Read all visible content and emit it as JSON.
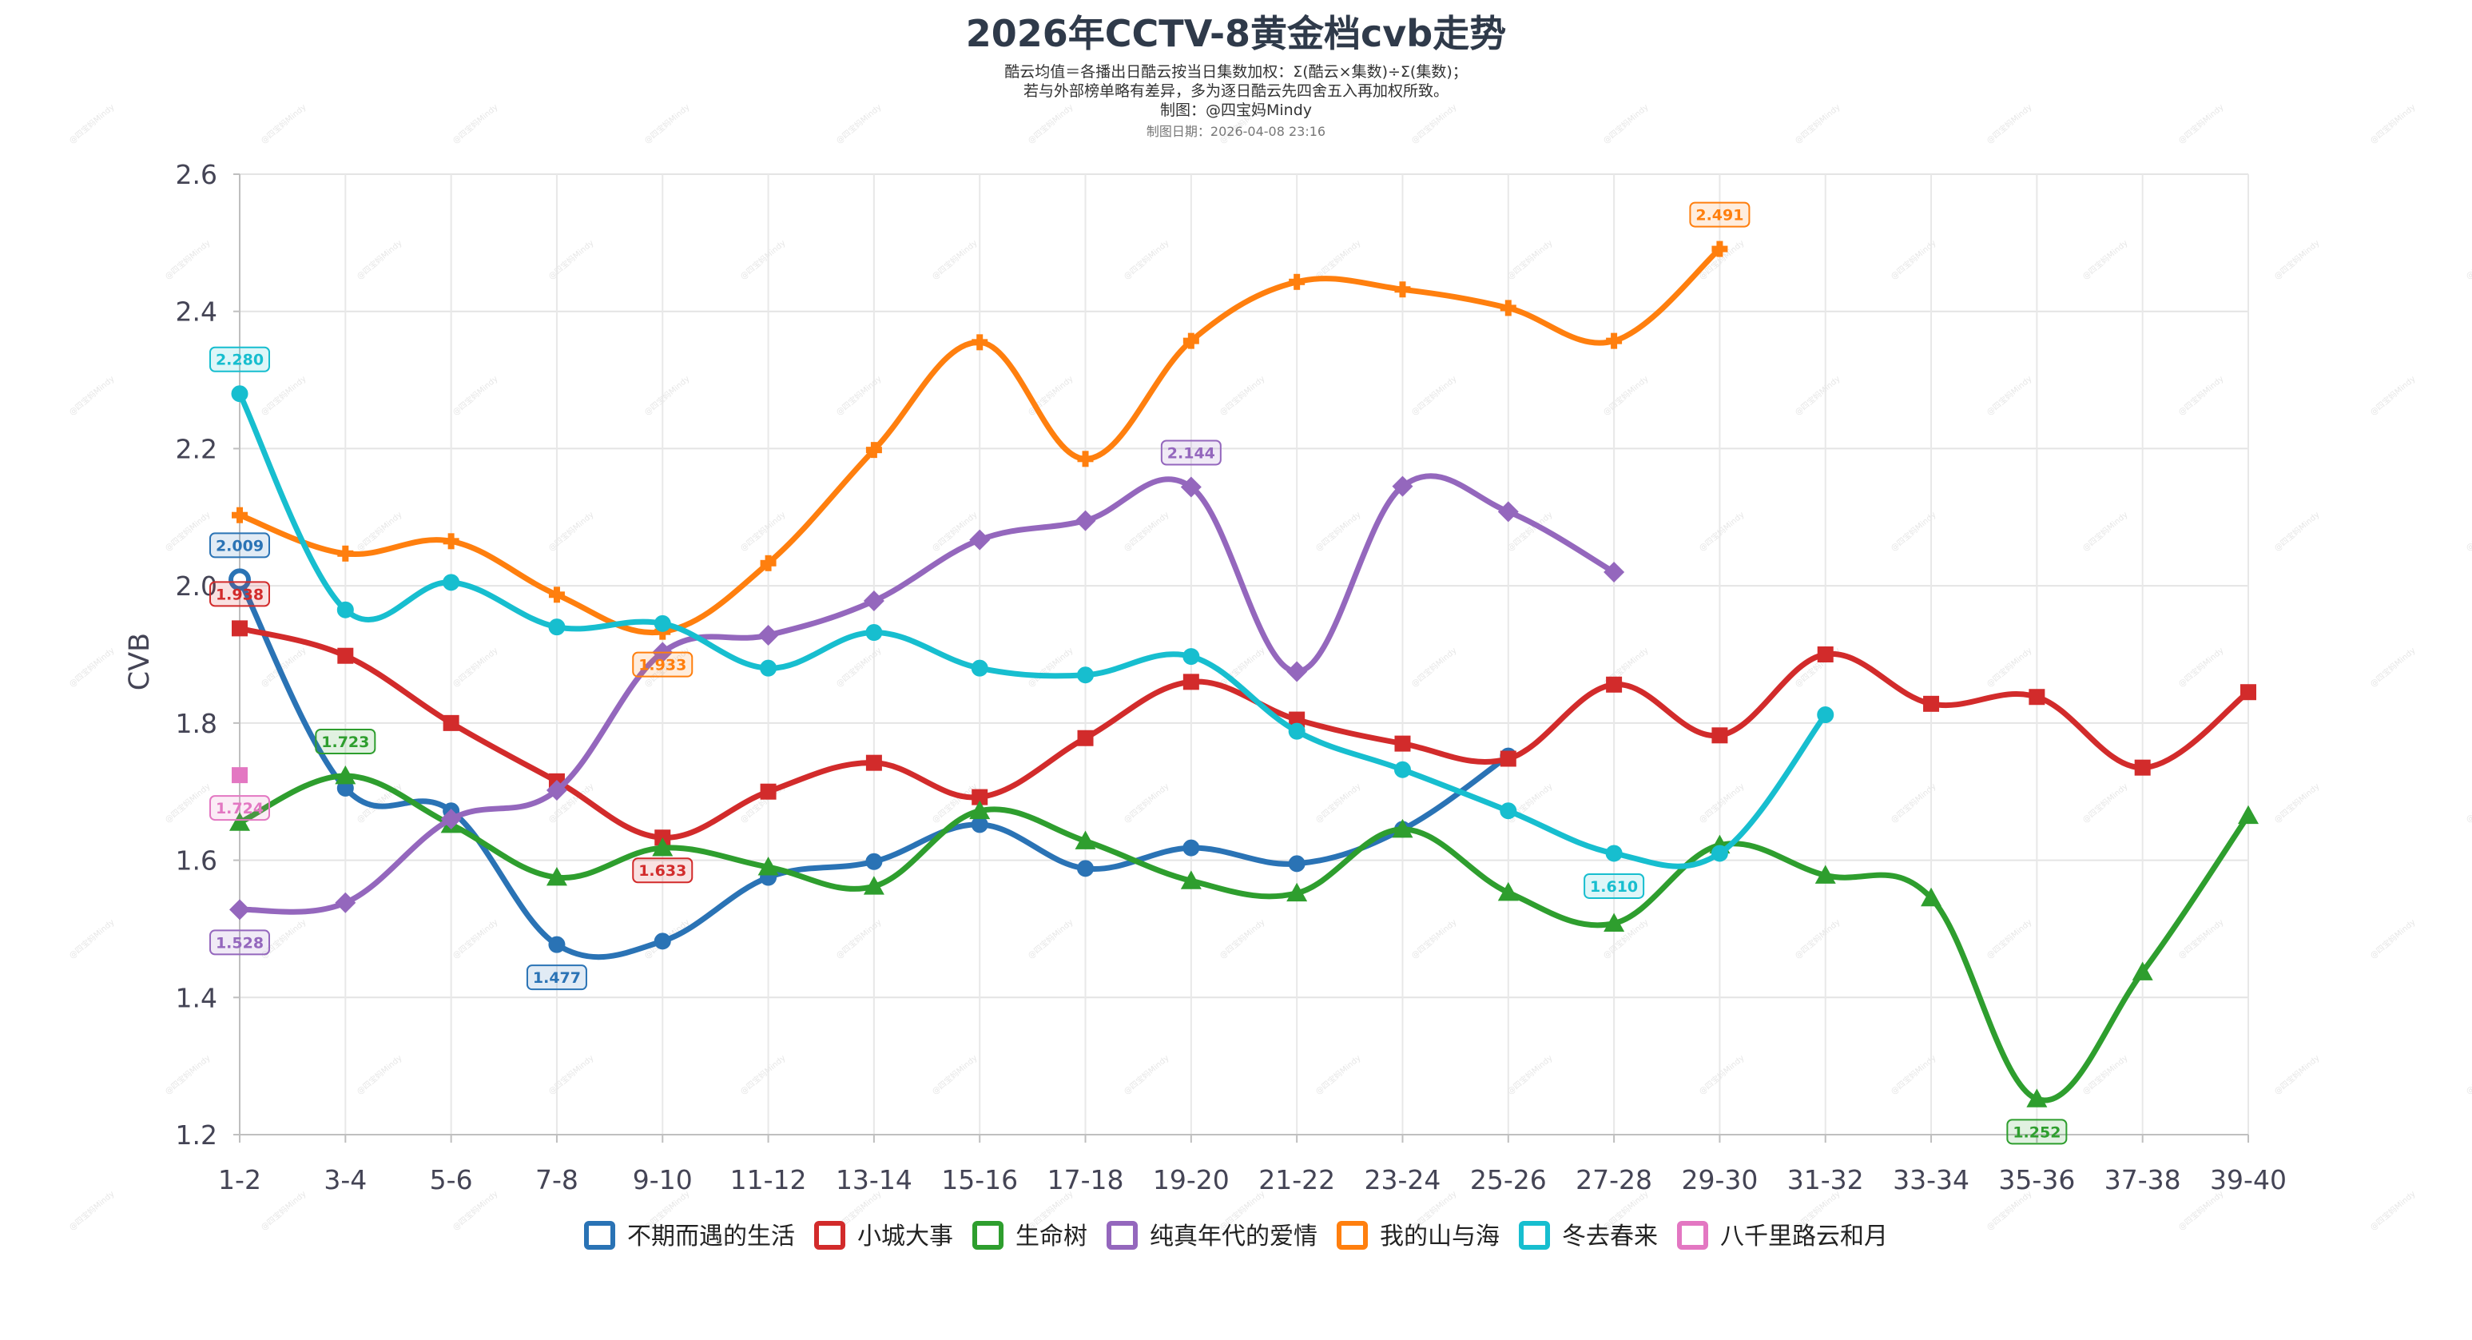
{
  "chart_data": {
    "type": "line",
    "title": "2026年CCTV-8黄金档cvb走势",
    "subtitle_lines": [
      "酷云均值＝各播出日酷云按当日集数加权：Σ(酷云×集数)÷Σ(集数)；",
      "若与外部榜单略有差异，多为逐日酷云先四舍五入再加权所致。",
      "制图：@四宝妈Mindy"
    ],
    "date_line": "制图日期：2026-04-08 23:16",
    "watermark": "@四宝妈Mindy",
    "xlabel": "",
    "ylabel": "CVB",
    "ylim": [
      1.2,
      2.6
    ],
    "yticks": [
      "1.2",
      "1.4",
      "1.6",
      "1.8",
      "2.0",
      "2.2",
      "2.4",
      "2.6"
    ],
    "grid": true,
    "legend_position": "bottom",
    "categories": [
      "1-2",
      "3-4",
      "5-6",
      "7-8",
      "9-10",
      "11-12",
      "13-14",
      "15-16",
      "17-18",
      "19-20",
      "21-22",
      "23-24",
      "25-26",
      "27-28",
      "29-30",
      "31-32",
      "33-34",
      "35-36",
      "37-38",
      "39-40"
    ],
    "series": [
      {
        "name": "不期而遇的生活",
        "color": "#2a73b5",
        "marker": "circle",
        "values": [
          2.009,
          1.705,
          1.672,
          1.477,
          1.482,
          1.575,
          1.598,
          1.652,
          1.588,
          1.618,
          1.595,
          1.645,
          1.752,
          null,
          null,
          null,
          null,
          null,
          null,
          null
        ],
        "labels": [
          {
            "index": 0,
            "text": "2.009",
            "pos": "above"
          },
          {
            "index": 3,
            "text": "1.477",
            "pos": "below"
          }
        ]
      },
      {
        "name": "小城大事",
        "color": "#d22b2b",
        "marker": "square",
        "values": [
          1.938,
          1.898,
          1.8,
          1.715,
          1.633,
          1.7,
          1.742,
          1.692,
          1.778,
          1.86,
          1.805,
          1.77,
          1.748,
          1.856,
          1.782,
          1.9,
          1.828,
          1.838,
          1.735,
          1.845
        ],
        "labels": [
          {
            "index": 0,
            "text": "1.938",
            "pos": "above"
          },
          {
            "index": 4,
            "text": "1.633",
            "pos": "below"
          }
        ]
      },
      {
        "name": "生命树",
        "color": "#2e9e2e",
        "marker": "triangle",
        "values": [
          1.655,
          1.723,
          1.652,
          1.575,
          1.618,
          1.59,
          1.562,
          1.672,
          1.628,
          1.57,
          1.552,
          1.645,
          1.553,
          1.508,
          1.622,
          1.578,
          1.545,
          1.252,
          1.437,
          1.665
        ],
        "labels": [
          {
            "index": 1,
            "text": "1.723",
            "pos": "above"
          },
          {
            "index": 17,
            "text": "1.252",
            "pos": "below"
          }
        ]
      },
      {
        "name": "纯真年代的爱情",
        "color": "#9467bd",
        "marker": "diamond",
        "values": [
          1.528,
          1.538,
          1.66,
          1.702,
          1.903,
          1.928,
          1.978,
          2.067,
          2.095,
          2.144,
          1.875,
          2.145,
          2.108,
          2.02,
          null,
          null,
          null,
          null,
          null,
          null
        ],
        "labels": [
          {
            "index": 0,
            "text": "1.528",
            "pos": "below"
          },
          {
            "index": 9,
            "text": "2.144",
            "pos": "above"
          }
        ]
      },
      {
        "name": "我的山与海",
        "color": "#ff7f0e",
        "marker": "cross",
        "values": [
          2.103,
          2.047,
          2.065,
          1.987,
          1.933,
          2.033,
          2.198,
          2.355,
          2.185,
          2.357,
          2.443,
          2.432,
          2.405,
          2.357,
          2.491,
          null,
          null,
          null,
          null,
          null
        ],
        "labels": [
          {
            "index": 4,
            "text": "1.933",
            "pos": "below"
          },
          {
            "index": 14,
            "text": "2.491",
            "pos": "above"
          }
        ]
      },
      {
        "name": "冬去春来",
        "color": "#17becf",
        "marker": "circle",
        "values": [
          2.28,
          1.965,
          2.005,
          1.94,
          1.945,
          1.88,
          1.932,
          1.88,
          1.87,
          1.897,
          1.788,
          1.732,
          1.672,
          1.61,
          1.61,
          1.812,
          null,
          null,
          null,
          null
        ],
        "labels": [
          {
            "index": 0,
            "text": "2.280",
            "pos": "above"
          },
          {
            "index": 13,
            "text": "1.610",
            "pos": "below"
          }
        ]
      },
      {
        "name": "八千里路云和月",
        "color": "#e377c2",
        "marker": "square",
        "values": [
          1.724,
          null,
          null,
          null,
          null,
          null,
          null,
          null,
          null,
          null,
          null,
          null,
          null,
          null,
          null,
          null,
          null,
          null,
          null,
          null
        ],
        "labels": [
          {
            "index": 0,
            "text": "1.724",
            "pos": "below"
          }
        ]
      }
    ]
  }
}
